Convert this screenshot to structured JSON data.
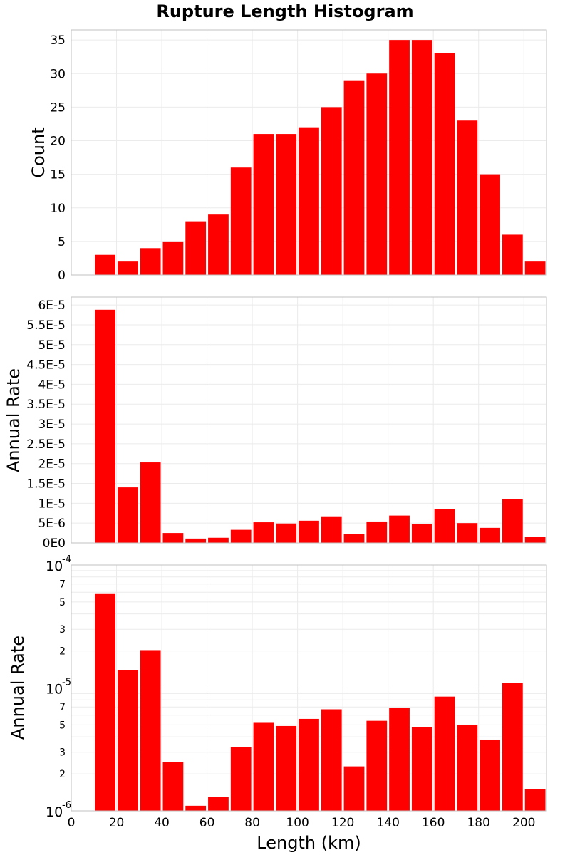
{
  "figure": {
    "title": "Rupture Length Histogram",
    "bar_color": "#ff0000",
    "x_tick_labels": [
      "0",
      "20",
      "40",
      "60",
      "80",
      "100",
      "120",
      "140",
      "160",
      "180",
      "200"
    ]
  },
  "chart_data": [
    {
      "type": "bar",
      "title": "Rupture Length Histogram",
      "xlabel": "",
      "ylabel": "Count",
      "x": [
        15,
        25,
        35,
        45,
        55,
        65,
        75,
        85,
        95,
        105,
        115,
        125,
        135,
        145,
        155,
        165,
        175,
        185,
        195,
        205
      ],
      "values": [
        3,
        2,
        4,
        5,
        8,
        9,
        16,
        21,
        21,
        22,
        25,
        29,
        30,
        35,
        35,
        33,
        23,
        15,
        6,
        2
      ],
      "bin_width": 10,
      "xlim": [
        0,
        210
      ],
      "ylim": [
        0,
        36.5
      ],
      "yscale": "linear",
      "y_ticks": [
        0,
        5,
        10,
        15,
        20,
        25,
        30,
        35
      ],
      "y_tick_labels": [
        "0",
        "5",
        "10",
        "15",
        "20",
        "25",
        "30",
        "35"
      ],
      "grid": true,
      "color": "#ff0000"
    },
    {
      "type": "bar",
      "xlabel": "",
      "ylabel": "Annual Rate",
      "x": [
        15,
        25,
        35,
        45,
        55,
        65,
        75,
        85,
        95,
        105,
        115,
        125,
        135,
        145,
        155,
        165,
        175,
        185,
        195,
        205
      ],
      "values": [
        5.88e-05,
        1.4e-05,
        2.03e-05,
        2.5e-06,
        1.1e-06,
        1.3e-06,
        3.3e-06,
        5.2e-06,
        4.9e-06,
        5.6e-06,
        6.7e-06,
        2.3e-06,
        5.4e-06,
        6.9e-06,
        4.8e-06,
        8.5e-06,
        5e-06,
        3.8e-06,
        1.1e-05,
        1.5e-06
      ],
      "bin_width": 10,
      "xlim": [
        0,
        210
      ],
      "ylim": [
        0,
        6.2e-05
      ],
      "yscale": "linear",
      "y_ticks": [
        0,
        5e-06,
        1e-05,
        1.5e-05,
        2e-05,
        2.5e-05,
        3e-05,
        3.5e-05,
        4e-05,
        4.5e-05,
        5e-05,
        5.5e-05,
        6e-05
      ],
      "y_tick_labels": [
        "0E0",
        "5E-6",
        "1E-5",
        "1.5E-5",
        "2E-5",
        "2.5E-5",
        "3E-5",
        "3.5E-5",
        "4E-5",
        "4.5E-5",
        "5E-5",
        "5.5E-5",
        "6E-5"
      ],
      "grid": true,
      "color": "#ff0000"
    },
    {
      "type": "bar",
      "xlabel": "Length (km)",
      "ylabel": "Annual Rate",
      "x": [
        15,
        25,
        35,
        45,
        55,
        65,
        75,
        85,
        95,
        105,
        115,
        125,
        135,
        145,
        155,
        165,
        175,
        185,
        195,
        205
      ],
      "values": [
        5.88e-05,
        1.4e-05,
        2.03e-05,
        2.5e-06,
        1.1e-06,
        1.3e-06,
        3.3e-06,
        5.2e-06,
        4.9e-06,
        5.6e-06,
        6.7e-06,
        2.3e-06,
        5.4e-06,
        6.9e-06,
        4.8e-06,
        8.5e-06,
        5e-06,
        3.8e-06,
        1.1e-05,
        1.5e-06
      ],
      "bin_width": 10,
      "xlim": [
        0,
        210
      ],
      "ylim": [
        1e-06,
        0.0001
      ],
      "yscale": "log",
      "y_major_ticks": [
        {
          "value": 1e-06,
          "base": "10",
          "exp": "-6"
        },
        {
          "value": 1e-05,
          "base": "10",
          "exp": "-5"
        },
        {
          "value": 0.0001,
          "base": "10",
          "exp": "-4"
        }
      ],
      "y_minor_labels": [
        {
          "value": 2e-06,
          "label": "2"
        },
        {
          "value": 3e-06,
          "label": "3"
        },
        {
          "value": 5e-06,
          "label": "5"
        },
        {
          "value": 7e-06,
          "label": "7"
        },
        {
          "value": 2e-05,
          "label": "2"
        },
        {
          "value": 3e-05,
          "label": "3"
        },
        {
          "value": 5e-05,
          "label": "5"
        },
        {
          "value": 7e-05,
          "label": "7"
        }
      ],
      "grid": true,
      "color": "#ff0000"
    }
  ]
}
